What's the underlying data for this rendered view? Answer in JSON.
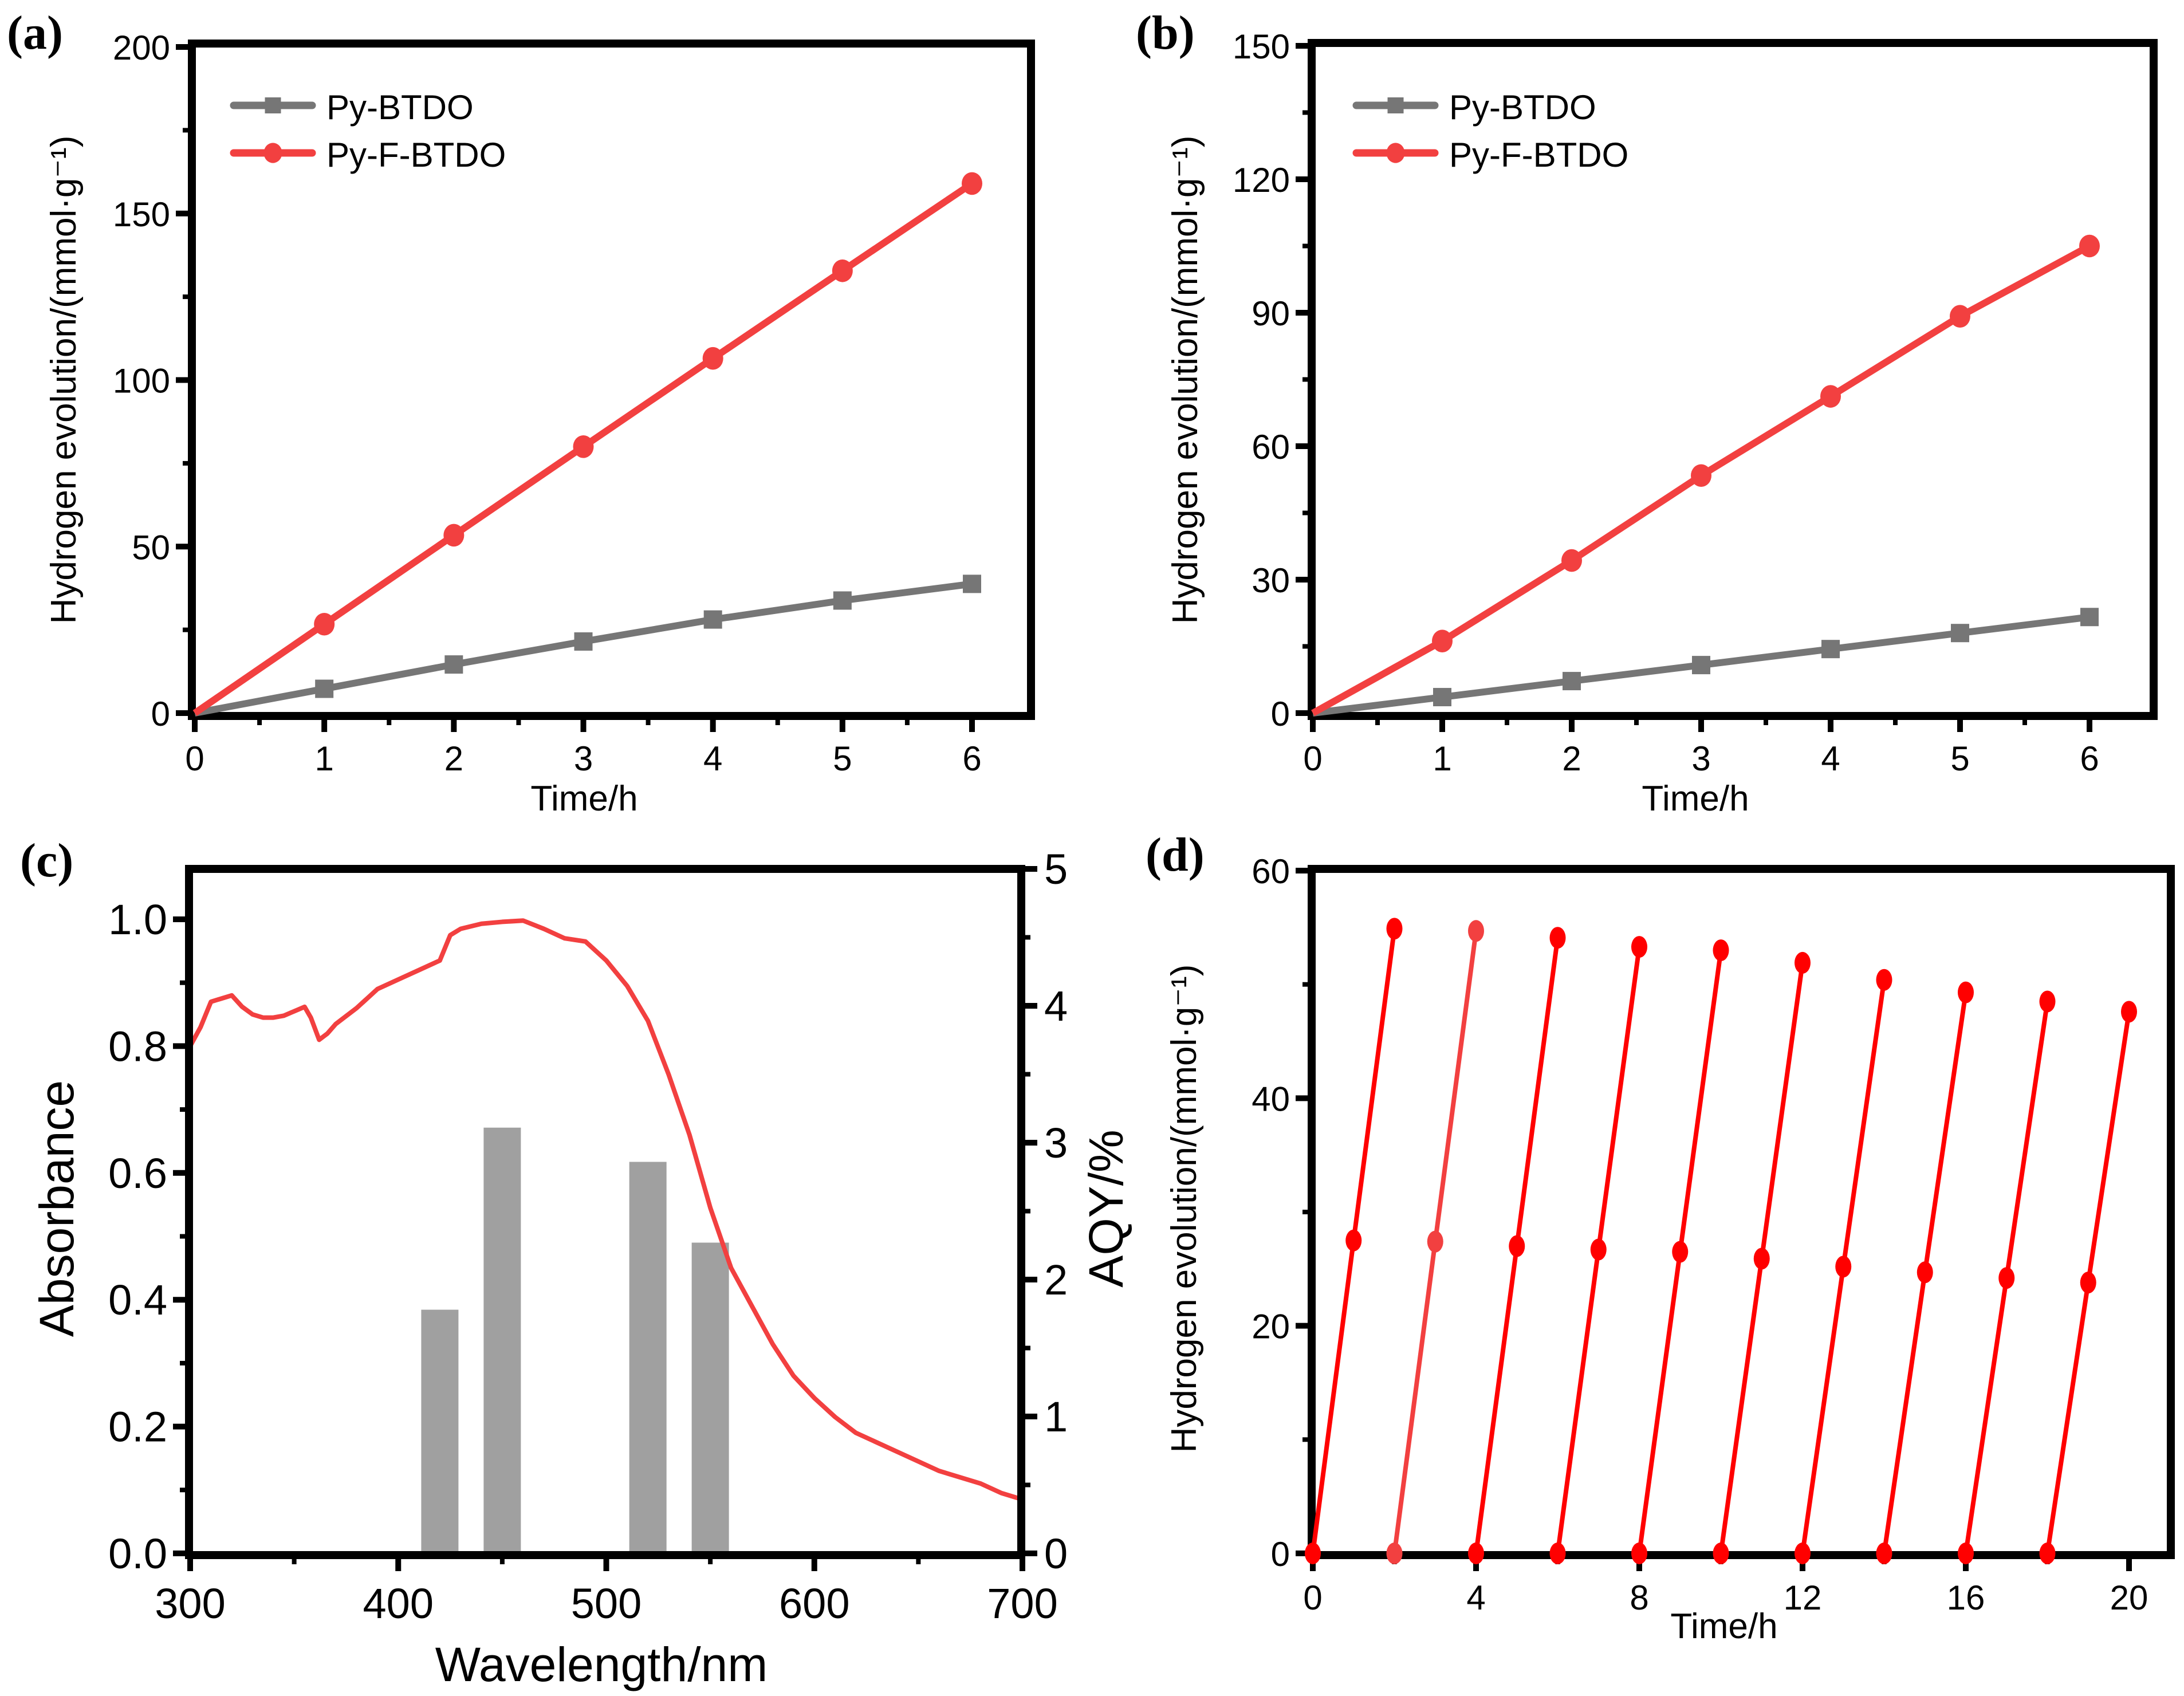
{
  "chart_data": [
    {
      "panel": "a",
      "panel_label": "(a)",
      "type": "line",
      "title": "",
      "xlabel": "Time/h",
      "ylabel": "Hydrogen evolution/(mmol·g⁻¹)",
      "xlim": [
        0,
        6.5
      ],
      "ylim": [
        0,
        200
      ],
      "xticks": [
        0,
        1,
        2,
        3,
        4,
        5,
        6
      ],
      "yticks": [
        0,
        50,
        100,
        150,
        200
      ],
      "grid": false,
      "legend_position": "top-left",
      "x": [
        0,
        1,
        2,
        3,
        4,
        5,
        6
      ],
      "series": [
        {
          "name": "Py-BTDO",
          "marker": "square",
          "color": "#767676",
          "values": [
            0,
            7.3,
            14.6,
            21.5,
            28.1,
            33.8,
            38.8
          ]
        },
        {
          "name": "Py-F-BTDO",
          "marker": "circle",
          "color": "#f24040",
          "values": [
            0,
            26.7,
            53.4,
            80.0,
            106.5,
            132.8,
            159.0
          ]
        }
      ]
    },
    {
      "panel": "b",
      "panel_label": "(b)",
      "type": "line",
      "title": "",
      "xlabel": "Time/h",
      "ylabel": "Hydrogen evolution/(mmol·g⁻¹)",
      "xlim": [
        0,
        6.5
      ],
      "ylim": [
        0,
        150
      ],
      "xticks": [
        0,
        1,
        2,
        3,
        4,
        5,
        6
      ],
      "yticks": [
        0,
        30,
        60,
        90,
        120,
        150
      ],
      "grid": false,
      "legend_position": "top-left",
      "x": [
        0,
        1,
        2,
        3,
        4,
        5,
        6
      ],
      "series": [
        {
          "name": "Py-BTDO",
          "marker": "square",
          "color": "#767676",
          "values": [
            0,
            3.6,
            7.2,
            10.8,
            14.4,
            18.0,
            21.6
          ]
        },
        {
          "name": "Py-F-BTDO",
          "marker": "circle",
          "color": "#f24040",
          "values": [
            0,
            16.2,
            34.3,
            53.4,
            71.2,
            89.2,
            105.0
          ]
        }
      ]
    },
    {
      "panel": "c",
      "panel_label": "(c)",
      "type": "line+bar",
      "title": "",
      "xlabel": "Wavelength/nm",
      "ylabel": "Absorbance",
      "ylabel_right": "AQY/%",
      "xlim": [
        300,
        700
      ],
      "ylim": [
        0,
        1.1
      ],
      "ylim_right": [
        0,
        5
      ],
      "xticks": [
        300,
        400,
        500,
        600,
        700
      ],
      "yticks": [
        "0.0",
        "0.2",
        "0.4",
        "0.6",
        "0.8",
        "1.0"
      ],
      "yticks_right": [
        0,
        1,
        2,
        3,
        4,
        5
      ],
      "grid": false,
      "absorbance": {
        "name": "Absorbance",
        "color": "#f24040",
        "x": [
          300,
          305,
          310,
          315,
          320,
          325,
          330,
          335,
          340,
          345,
          350,
          355,
          358,
          362,
          366,
          370,
          380,
          390,
          400,
          410,
          420,
          425,
          430,
          440,
          450,
          460,
          470,
          480,
          490,
          500,
          510,
          520,
          530,
          540,
          550,
          560,
          570,
          580,
          590,
          600,
          610,
          620,
          640,
          660,
          680,
          690,
          700
        ],
        "y": [
          0.8,
          0.83,
          0.87,
          0.875,
          0.88,
          0.862,
          0.85,
          0.845,
          0.845,
          0.848,
          0.855,
          0.862,
          0.845,
          0.81,
          0.82,
          0.835,
          0.86,
          0.89,
          0.905,
          0.92,
          0.935,
          0.975,
          0.985,
          0.993,
          0.996,
          0.998,
          0.985,
          0.97,
          0.965,
          0.935,
          0.895,
          0.84,
          0.755,
          0.66,
          0.545,
          0.45,
          0.39,
          0.33,
          0.28,
          0.245,
          0.215,
          0.19,
          0.16,
          0.13,
          0.11,
          0.095,
          0.085
        ]
      },
      "aqy_bars": {
        "name": "AQY",
        "color": "#a0a0a0",
        "wavelengths": [
          420,
          450,
          520,
          550
        ],
        "values": [
          1.78,
          3.11,
          2.86,
          2.27
        ]
      }
    },
    {
      "panel": "d",
      "panel_label": "(d)",
      "type": "line",
      "title": "",
      "xlabel": "Time/h",
      "ylabel": "Hydrogen evolution/(mmol·g⁻¹)",
      "xlim": [
        0,
        21
      ],
      "ylim": [
        0,
        60
      ],
      "xticks": [
        0,
        4,
        8,
        12,
        16,
        20
      ],
      "yticks": [
        0,
        20,
        40,
        60
      ],
      "grid": false,
      "color": "#ff0000",
      "cycles": [
        {
          "x": [
            0,
            1,
            2
          ],
          "y": [
            0,
            27.5,
            54.9
          ]
        },
        {
          "x": [
            2,
            3,
            4
          ],
          "y": [
            0,
            27.4,
            54.7
          ]
        },
        {
          "x": [
            4,
            5,
            6
          ],
          "y": [
            0,
            27.0,
            54.1
          ]
        },
        {
          "x": [
            6,
            7,
            8
          ],
          "y": [
            0,
            26.7,
            53.3
          ]
        },
        {
          "x": [
            8,
            9,
            10
          ],
          "y": [
            0,
            26.5,
            53.0
          ]
        },
        {
          "x": [
            10,
            11,
            12
          ],
          "y": [
            0,
            25.9,
            51.9
          ]
        },
        {
          "x": [
            12,
            13,
            14
          ],
          "y": [
            0,
            25.2,
            50.4
          ]
        },
        {
          "x": [
            14,
            15,
            16
          ],
          "y": [
            0,
            24.7,
            49.3
          ]
        },
        {
          "x": [
            16,
            17,
            18
          ],
          "y": [
            0,
            24.2,
            48.5
          ]
        },
        {
          "x": [
            18,
            19,
            20
          ],
          "y": [
            0,
            23.8,
            47.6
          ]
        }
      ]
    }
  ]
}
